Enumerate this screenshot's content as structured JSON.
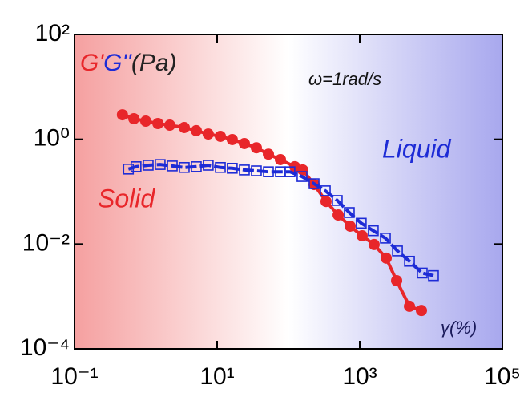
{
  "chart_data": {
    "type": "scatter",
    "xlog": true,
    "ylog": true,
    "xlim": [
      0.1,
      100000
    ],
    "ylim": [
      0.0001,
      100
    ],
    "xticks": [
      {
        "value": 0.1,
        "label": "10⁻¹"
      },
      {
        "value": 10,
        "label": "10¹"
      },
      {
        "value": 1000,
        "label": "10³"
      },
      {
        "value": 100000,
        "label": "10⁵"
      }
    ],
    "yticks": [
      {
        "value": 0.0001,
        "label": "10⁻⁴"
      },
      {
        "value": 0.01,
        "label": "10⁻²"
      },
      {
        "value": 1,
        "label": "10⁰"
      },
      {
        "value": 100,
        "label": "10²"
      }
    ],
    "y_unit": "(Pa)",
    "annotations": [
      "ω=1rad/s",
      "Solid",
      "Liquid",
      "γ(%)"
    ],
    "series": [
      {
        "name": "G'",
        "color": "#e8262a",
        "marker": "circle",
        "x": [
          0.47,
          0.68,
          1.0,
          1.48,
          2.17,
          3.46,
          5.1,
          7.5,
          11.1,
          16.3,
          24.1,
          35.5,
          52.4,
          77.2,
          123,
          159,
          229,
          337,
          498,
          733,
          1080,
          1590,
          2350,
          3290,
          4980,
          7330
        ],
        "values": [
          2.94,
          2.47,
          2.22,
          2.0,
          1.86,
          1.68,
          1.46,
          1.26,
          1.14,
          0.99,
          0.83,
          0.69,
          0.52,
          0.41,
          0.3,
          0.26,
          0.137,
          0.065,
          0.036,
          0.022,
          0.0144,
          0.0098,
          0.0054,
          0.002,
          0.00065,
          0.00054
        ]
      },
      {
        "name": "G''",
        "color": "#1d2bd6",
        "marker": "square",
        "x": [
          0.57,
          0.73,
          1.08,
          1.59,
          2.35,
          3.46,
          5.1,
          7.5,
          11.1,
          16.3,
          24.1,
          35.5,
          52.4,
          77.2,
          105,
          155,
          229,
          329,
          484,
          714,
          1050,
          1550,
          2290,
          3380,
          4980,
          7520,
          10800
        ],
        "values": [
          0.27,
          0.3,
          0.32,
          0.33,
          0.31,
          0.29,
          0.3,
          0.32,
          0.29,
          0.28,
          0.26,
          0.25,
          0.24,
          0.24,
          0.24,
          0.195,
          0.142,
          0.104,
          0.068,
          0.04,
          0.025,
          0.018,
          0.013,
          0.0074,
          0.0047,
          0.0028,
          0.0025
        ]
      }
    ]
  }
}
